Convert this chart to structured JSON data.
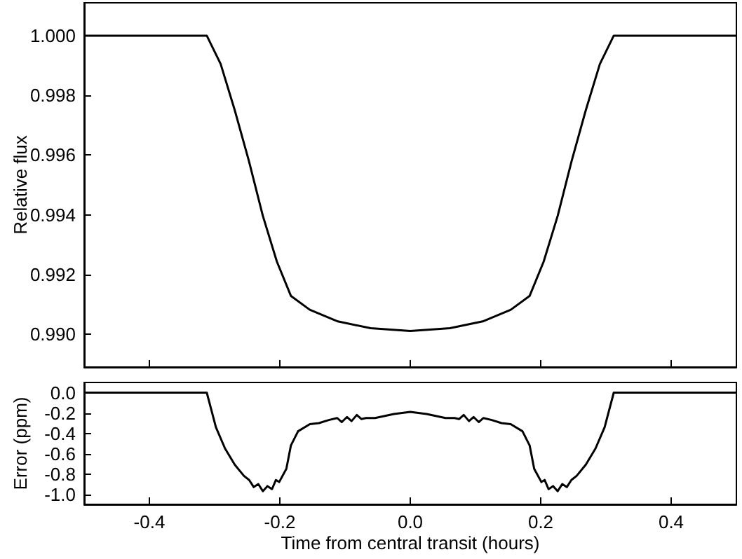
{
  "chart_data": [
    {
      "type": "line",
      "ylabel": "Relative flux",
      "tick_labels": "y",
      "marker": "none",
      "line_style": "solid",
      "xlim": [
        -0.5,
        0.5
      ],
      "xticks": [
        -0.4,
        -0.2,
        0,
        0.2,
        0.4
      ],
      "ylim": [
        0.9889,
        1.0011
      ],
      "yticks": [
        {
          "value": 0.99,
          "label": "0.990"
        },
        0.992,
        0.994,
        0.996,
        0.998,
        {
          "value": 1,
          "label": "1.000"
        }
      ],
      "x": [
        -0.5,
        -0.312,
        -0.2907,
        -0.2692,
        -0.2476,
        -0.2261,
        -0.2045,
        -0.1829,
        -0.1542,
        -0.1111,
        -0.0608,
        0,
        0.0608,
        0.1111,
        0.1542,
        0.1829,
        0.2045,
        0.2261,
        0.2476,
        0.2692,
        0.2907,
        0.312,
        0.5
      ],
      "series": [
        {
          "color": "#000000",
          "values": [
            1.0,
            1.0,
            0.99905,
            0.99751,
            0.99582,
            0.99397,
            0.99243,
            0.99128,
            0.99082,
            0.99043,
            0.9902,
            0.99011,
            0.9902,
            0.99043,
            0.99082,
            0.99128,
            0.99243,
            0.99397,
            0.99582,
            0.99751,
            0.99905,
            1.0,
            1.0
          ]
        }
      ]
    },
    {
      "type": "line",
      "xlabel": "Time from central transit (hours)",
      "ylabel": "Error (ppm)",
      "marker": "none",
      "line_style": "solid",
      "xlim": [
        -0.5,
        0.5
      ],
      "xticks": [
        -0.4,
        -0.2,
        {
          "value": 0,
          "label": "0.0"
        },
        0.2,
        0.4
      ],
      "ylim": [
        -1.1,
        0.1
      ],
      "yticks": [
        {
          "value": -1,
          "label": "-1.0"
        },
        -0.8,
        -0.6,
        -0.4,
        -0.2,
        {
          "value": 0,
          "label": "0.0"
        }
      ],
      "x": [
        -0.5,
        -0.312,
        -0.298,
        -0.284,
        -0.269,
        -0.255,
        -0.247,
        -0.24,
        -0.233,
        -0.226,
        -0.219,
        -0.212,
        -0.206,
        -0.201,
        -0.19,
        -0.183,
        -0.172,
        -0.154,
        -0.14,
        -0.125,
        -0.112,
        -0.105,
        -0.097,
        -0.09,
        -0.082,
        -0.075,
        -0.068,
        -0.054,
        -0.025,
        0,
        0.025,
        0.054,
        0.068,
        0.075,
        0.082,
        0.09,
        0.097,
        0.105,
        0.112,
        0.125,
        0.14,
        0.154,
        0.172,
        0.183,
        0.19,
        0.201,
        0.206,
        0.212,
        0.219,
        0.226,
        0.233,
        0.24,
        0.247,
        0.255,
        0.269,
        0.284,
        0.298,
        0.312,
        0.5
      ],
      "series": [
        {
          "color": "#000000",
          "values": [
            0,
            0,
            -0.34,
            -0.55,
            -0.71,
            -0.82,
            -0.86,
            -0.93,
            -0.9,
            -0.97,
            -0.92,
            -0.95,
            -0.86,
            -0.88,
            -0.75,
            -0.52,
            -0.38,
            -0.31,
            -0.3,
            -0.27,
            -0.25,
            -0.29,
            -0.24,
            -0.28,
            -0.22,
            -0.26,
            -0.25,
            -0.25,
            -0.21,
            -0.19,
            -0.21,
            -0.25,
            -0.25,
            -0.26,
            -0.22,
            -0.28,
            -0.24,
            -0.29,
            -0.25,
            -0.27,
            -0.3,
            -0.31,
            -0.38,
            -0.52,
            -0.75,
            -0.88,
            -0.86,
            -0.95,
            -0.92,
            -0.97,
            -0.9,
            -0.93,
            -0.86,
            -0.82,
            -0.71,
            -0.55,
            -0.34,
            0,
            0
          ]
        }
      ]
    }
  ]
}
